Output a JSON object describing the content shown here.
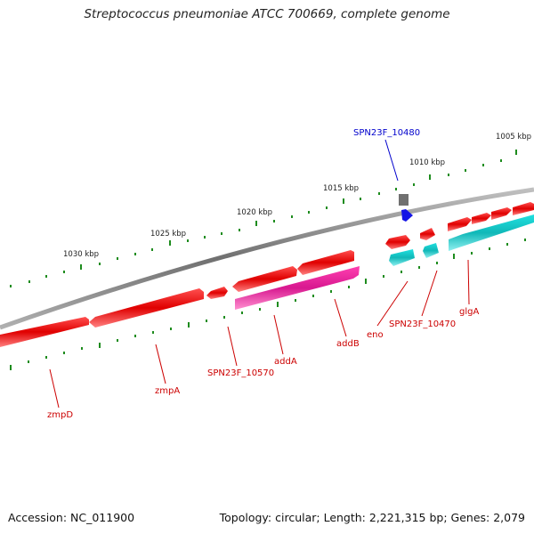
{
  "title": "Streptococcus pneumoniae ATCC 700669, complete genome",
  "footer": {
    "accession": "Accession: NC_011900",
    "topology": "Topology: circular; Length: 2,221,315 bp; Genes: 2,079"
  },
  "colors": {
    "backbone": "#8a8a8a",
    "tick": "#1e8c1e",
    "gene_red": "#e01010",
    "gene_teal": "#18c4c4",
    "gene_magenta": "#e0209a",
    "gene_blue": "#1010e0",
    "gene_grey": "#707070",
    "label_red": "#cc0000",
    "label_blue": "#0000cc"
  },
  "scale": {
    "labels": [
      "1005 kbp",
      "1010 kbp",
      "1015 kbp",
      "1020 kbp",
      "1025 kbp",
      "1030 kbp"
    ]
  },
  "gene_labels": [
    {
      "text": "SPN23F_10480",
      "color": "blue"
    },
    {
      "text": "glgA",
      "color": "red"
    },
    {
      "text": "SPN23F_10470",
      "color": "red"
    },
    {
      "text": "eno",
      "color": "red"
    },
    {
      "text": "addB",
      "color": "red"
    },
    {
      "text": "addA",
      "color": "red"
    },
    {
      "text": "SPN23F_10570",
      "color": "red"
    },
    {
      "text": "zmpA",
      "color": "red"
    },
    {
      "text": "zmpD",
      "color": "red"
    }
  ]
}
